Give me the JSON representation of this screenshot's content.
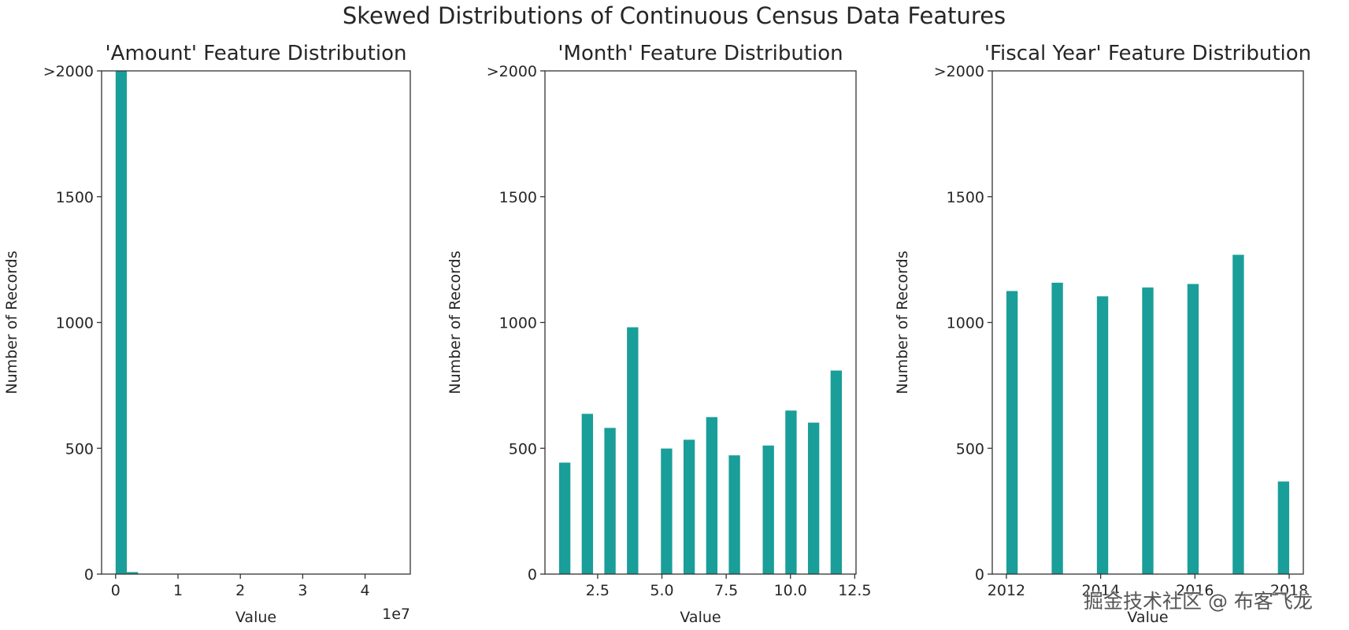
{
  "suptitle": "Skewed Distributions of Continuous Census Data Features",
  "bar_color": "#1a9e99",
  "watermark": "掘金技术社区 @ 布客飞龙",
  "chart_data": [
    {
      "type": "bar",
      "title": "'Amount' Feature Distribution",
      "xlabel": "Value",
      "ylabel": "Number of Records",
      "x_offset_label": "1e7",
      "xlim": [
        -0.225,
        4.725
      ],
      "ylim": [
        0,
        2000
      ],
      "xticks": [
        0,
        1,
        2,
        3,
        4
      ],
      "xtick_labels": [
        "0",
        "1",
        "2",
        "3",
        "4"
      ],
      "yticks": [
        0,
        500,
        1000,
        1500,
        2000
      ],
      "ytick_labels": [
        "0",
        "500",
        "1000",
        "1500",
        ">2000"
      ],
      "bar_width": 0.18,
      "bars": [
        {
          "x": 0.09,
          "y": 2000
        },
        {
          "x": 0.27,
          "y": 8
        }
      ]
    },
    {
      "type": "bar",
      "title": "'Month' Feature Distribution",
      "xlabel": "Value",
      "ylabel": "Number of Records",
      "xlim": [
        0.45,
        12.55
      ],
      "ylim": [
        0,
        2000
      ],
      "xticks": [
        2.5,
        5.0,
        7.5,
        10.0,
        12.5
      ],
      "xtick_labels": [
        "2.5",
        "5.0",
        "7.5",
        "10.0",
        "12.5"
      ],
      "yticks": [
        0,
        500,
        1000,
        1500,
        2000
      ],
      "ytick_labels": [
        "0",
        "500",
        "1000",
        "1500",
        ">2000"
      ],
      "bar_width": 0.44,
      "bars": [
        {
          "x": 1.22,
          "y": 443
        },
        {
          "x": 2.1,
          "y": 637
        },
        {
          "x": 2.98,
          "y": 581
        },
        {
          "x": 3.86,
          "y": 981
        },
        {
          "x": 5.18,
          "y": 499
        },
        {
          "x": 6.06,
          "y": 534
        },
        {
          "x": 6.94,
          "y": 624
        },
        {
          "x": 7.82,
          "y": 472
        },
        {
          "x": 9.14,
          "y": 511
        },
        {
          "x": 10.02,
          "y": 650
        },
        {
          "x": 10.9,
          "y": 602
        },
        {
          "x": 11.78,
          "y": 809
        }
      ]
    },
    {
      "type": "bar",
      "title": "'Fiscal Year' Feature Distribution",
      "xlabel": "Value",
      "ylabel": "Number of Records",
      "xlim": [
        2011.7,
        2018.3
      ],
      "ylim": [
        0,
        2000
      ],
      "xticks": [
        2012,
        2014,
        2016,
        2018
      ],
      "xtick_labels": [
        "2012",
        "2014",
        "2016",
        "2018"
      ],
      "yticks": [
        0,
        500,
        1000,
        1500,
        2000
      ],
      "ytick_labels": [
        "0",
        "500",
        "1000",
        "1500",
        ">2000"
      ],
      "bar_width": 0.24,
      "bars": [
        {
          "x": 2012.12,
          "y": 1125
        },
        {
          "x": 2013.08,
          "y": 1158
        },
        {
          "x": 2014.04,
          "y": 1104
        },
        {
          "x": 2015.0,
          "y": 1139
        },
        {
          "x": 2015.96,
          "y": 1153
        },
        {
          "x": 2016.92,
          "y": 1269
        },
        {
          "x": 2017.88,
          "y": 368
        }
      ]
    }
  ]
}
